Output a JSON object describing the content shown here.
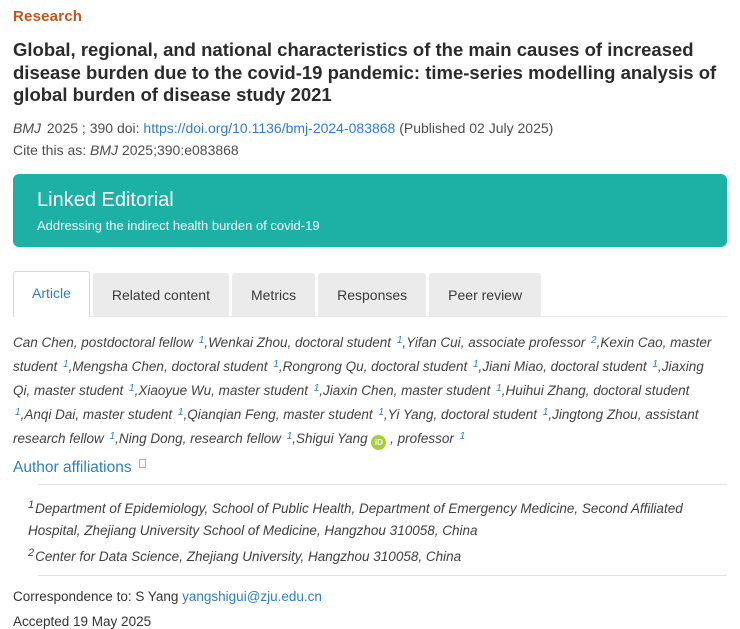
{
  "header": {
    "section_label": "Research",
    "title": "Global, regional, and national characteristics of the main causes of increased disease burden due to the covid-19 pandemic: time-series modelling analysis of global burden of disease study 2021",
    "citation": {
      "journal": "BMJ",
      "year_volume": "2025 ; 390",
      "doi_label": "doi:",
      "doi_link": "https://doi.org/10.1136/bmj-2024-083868",
      "published": "(Published 02 July 2025)",
      "cite_prefix": "Cite this as:",
      "cite_journal": "BMJ",
      "cite_ref": "2025;390:e083868"
    }
  },
  "linked_editorial": {
    "title": "Linked Editorial",
    "subtitle": "Addressing the indirect health burden of covid-19"
  },
  "tabs": [
    {
      "label": "Article",
      "active": true
    },
    {
      "label": "Related content",
      "active": false
    },
    {
      "label": "Metrics",
      "active": false
    },
    {
      "label": "Responses",
      "active": false
    },
    {
      "label": "Peer review",
      "active": false
    }
  ],
  "authors": [
    {
      "name": "Can Chen",
      "role": "postdoctoral fellow",
      "affil": "1"
    },
    {
      "name": "Wenkai Zhou",
      "role": "doctoral student",
      "affil": "1"
    },
    {
      "name": "Yifan Cui",
      "role": "associate professor",
      "affil": "2"
    },
    {
      "name": "Kexin Cao",
      "role": "master student",
      "affil": "1"
    },
    {
      "name": "Mengsha Chen",
      "role": "doctoral student",
      "affil": "1"
    },
    {
      "name": "Rongrong Qu",
      "role": "doctoral student",
      "affil": "1"
    },
    {
      "name": "Jiani Miao",
      "role": "doctoral student",
      "affil": "1"
    },
    {
      "name": "Jiaxing Qi",
      "role": "master student",
      "affil": "1"
    },
    {
      "name": "Xiaoyue Wu",
      "role": "master student",
      "affil": "1"
    },
    {
      "name": "Jiaxin Chen",
      "role": "master student",
      "affil": "1"
    },
    {
      "name": "Huihui Zhang",
      "role": "doctoral student",
      "affil": "1"
    },
    {
      "name": "Anqi Dai",
      "role": "master student",
      "affil": "1"
    },
    {
      "name": "Qianqian Feng",
      "role": "master student",
      "affil": "1"
    },
    {
      "name": "Yi Yang",
      "role": "doctoral student",
      "affil": "1"
    },
    {
      "name": "Jingtong Zhou",
      "role": "assistant research fellow",
      "affil": "1"
    },
    {
      "name": "Ning Dong",
      "role": "research fellow",
      "affil": "1"
    },
    {
      "name": "Shigui Yang",
      "role": "professor",
      "affil": "1",
      "orcid": true
    }
  ],
  "affiliations_section": {
    "heading": "Author affiliations",
    "items": [
      {
        "num": "1",
        "text": "Department of Epidemiology, School of Public Health, Department of Emergency Medicine, Second Affiliated Hospital, Zhejiang University School of Medicine, Hangzhou 310058, China"
      },
      {
        "num": "2",
        "text": "Center for Data Science, Zhejiang University, Hangzhou 310058, China"
      }
    ]
  },
  "correspondence": {
    "prefix": "Correspondence to: S Yang",
    "email": "yangshigui@zju.edu.cn"
  },
  "accepted": "Accepted 19 May 2025",
  "icons": {
    "orcid_label": "iD",
    "orcid_name": "orcid-icon",
    "affiliations_expand_name": "expand-icon"
  },
  "colors": {
    "section_label_orange": "#c05717",
    "link_blue": "#2d7fc1",
    "banner_teal": "#1db1a5",
    "orcid_green": "#a6ce39",
    "title_ink": "#2b2b2b"
  }
}
